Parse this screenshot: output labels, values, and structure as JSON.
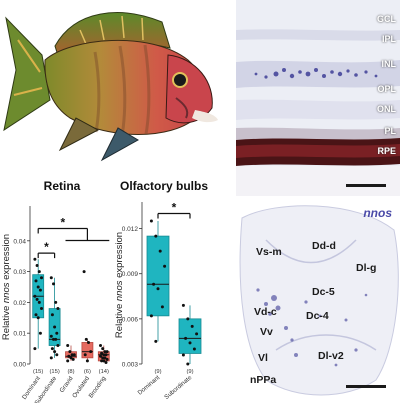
{
  "figure": {
    "colors": {
      "accent": "#1fb5c0",
      "accent_dark": "#168a92",
      "secondary": "#e56a60",
      "secondary_dark": "#b74b43",
      "stain": "#2a2a8c",
      "tissue": "#e8e9f2"
    },
    "fish": {
      "icon": "fish-photo-icon"
    },
    "retina_section": {
      "labels": [
        "GCL",
        "IPL",
        "INL",
        "OPL",
        "ONL",
        "PL",
        "RPE"
      ]
    },
    "brain_section": {
      "title": "nnos",
      "labels": [
        "Vs-m",
        "Dd-d",
        "Dl-g",
        "Dc-5",
        "Vd-c",
        "Dc-4",
        "Vv",
        "Vl",
        "Dl-v2",
        "nPPa"
      ]
    }
  },
  "chart_data": [
    {
      "type": "box",
      "title": "Retina",
      "xlabel": "",
      "ylabel": "Relative nnos expression",
      "ylim": [
        0.0,
        0.05
      ],
      "yticks": [
        0.0,
        0.01,
        0.02,
        0.03,
        0.04
      ],
      "ytick_labels": [
        "0.00",
        "0.01",
        "0.02",
        "0.03",
        "0.04"
      ],
      "categories": [
        "Dominant",
        "Subordinate",
        "Gravid",
        "Ovulated",
        "Brooding"
      ],
      "counts": [
        "(15)",
        "(15)",
        "(8)",
        "(6)",
        "(14)"
      ],
      "box_color_group": [
        "accent",
        "accent",
        "secondary",
        "secondary",
        "secondary"
      ],
      "boxes": [
        {
          "q1": 0.015,
          "median": 0.022,
          "q3": 0.029,
          "whisker_low": 0.005,
          "whisker_high": 0.034
        },
        {
          "q1": 0.006,
          "median": 0.008,
          "q3": 0.018,
          "whisker_low": 0.002,
          "whisker_high": 0.028
        },
        {
          "q1": 0.002,
          "median": 0.0025,
          "q3": 0.004,
          "whisker_low": 0.001,
          "whisker_high": 0.006
        },
        {
          "q1": 0.002,
          "median": 0.004,
          "q3": 0.007,
          "whisker_low": 0.001,
          "whisker_high": 0.008
        },
        {
          "q1": 0.001,
          "median": 0.003,
          "q3": 0.004,
          "whisker_low": 0.0005,
          "whisker_high": 0.006
        }
      ],
      "points": [
        [
          0.034,
          0.032,
          0.03,
          0.028,
          0.027,
          0.025,
          0.024,
          0.022,
          0.021,
          0.02,
          0.018,
          0.016,
          0.015,
          0.01,
          0.005
        ],
        [
          0.028,
          0.026,
          0.02,
          0.018,
          0.016,
          0.012,
          0.01,
          0.009,
          0.008,
          0.008,
          0.006,
          0.005,
          0.004,
          0.003,
          0.002
        ],
        [
          0.006,
          0.004,
          0.003,
          0.003,
          0.0025,
          0.002,
          0.0015,
          0.001
        ],
        [
          0.03,
          0.008,
          0.007,
          0.004,
          0.003,
          0.001
        ],
        [
          0.006,
          0.005,
          0.004,
          0.004,
          0.0035,
          0.003,
          0.003,
          0.0025,
          0.002,
          0.002,
          0.0015,
          0.001,
          0.001,
          0.0005
        ]
      ],
      "significance": [
        {
          "from": 0,
          "to": 1,
          "y": 0.036,
          "label": "*"
        },
        {
          "from": 0,
          "to_range": [
            2,
            4
          ],
          "y": 0.044,
          "label": "*"
        }
      ],
      "grid": false,
      "legend": "none"
    },
    {
      "type": "box",
      "title": "Olfactory bulbs",
      "xlabel": "",
      "ylabel": "Relative nnos expression",
      "ylim": [
        0.003,
        0.0135
      ],
      "yticks": [
        0.003,
        0.006,
        0.009,
        0.012
      ],
      "ytick_labels": [
        "0.003",
        "0.006",
        "0.009",
        "0.012"
      ],
      "categories": [
        "Dominant",
        "Subordinate"
      ],
      "counts": [
        "(9)",
        "(9)"
      ],
      "box_color_group": [
        "accent",
        "accent"
      ],
      "boxes": [
        {
          "q1": 0.0062,
          "median": 0.0083,
          "q3": 0.0115,
          "whisker_low": 0.0045,
          "whisker_high": 0.0125
        },
        {
          "q1": 0.0037,
          "median": 0.0047,
          "q3": 0.006,
          "whisker_low": 0.003,
          "whisker_high": 0.0069
        }
      ],
      "points": [
        [
          0.0125,
          0.0115,
          0.0105,
          0.0095,
          0.0083,
          0.008,
          0.0068,
          0.0062,
          0.0045
        ],
        [
          0.0069,
          0.006,
          0.0055,
          0.005,
          0.0047,
          0.0044,
          0.004,
          0.0036,
          0.003
        ]
      ],
      "significance": [
        {
          "from": 0,
          "to": 1,
          "y": 0.013,
          "label": "*"
        }
      ],
      "grid": false,
      "legend": "none"
    }
  ]
}
